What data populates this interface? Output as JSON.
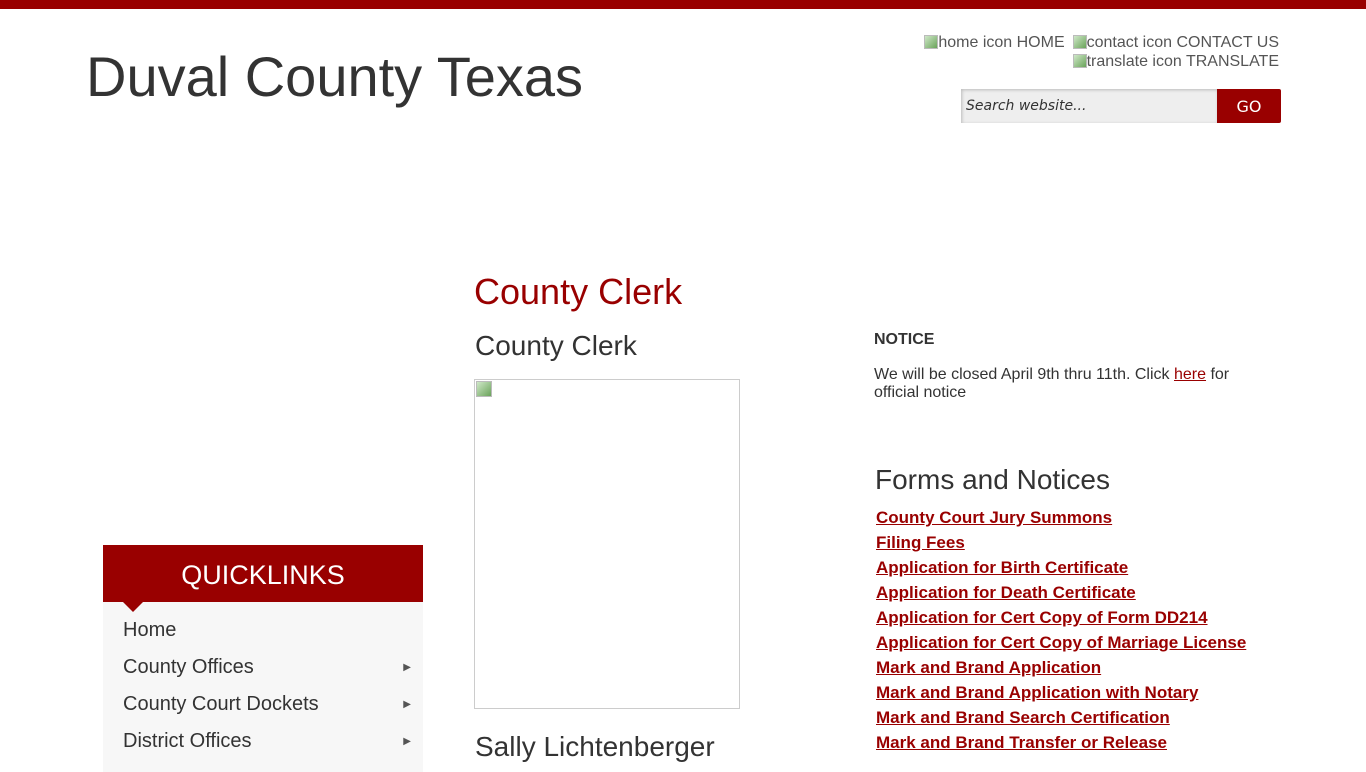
{
  "header": {
    "site_title": "Duval County Texas",
    "links": [
      {
        "alt": "home icon",
        "label": "HOME"
      },
      {
        "alt": "contact icon",
        "label": "CONTACT US"
      },
      {
        "alt": "translate icon",
        "label": "TRANSLATE"
      }
    ],
    "search_placeholder": "Search website...",
    "go_label": "GO"
  },
  "quicklinks": {
    "title": "QUICKLINKS",
    "items": [
      {
        "label": "Home",
        "has_submenu": false
      },
      {
        "label": "County Offices",
        "has_submenu": true
      },
      {
        "label": "County Court Dockets",
        "has_submenu": true
      },
      {
        "label": "District Offices",
        "has_submenu": true
      }
    ]
  },
  "main": {
    "page_title": "County Clerk",
    "subtitle": "County Clerk",
    "official_name": "Sally Lichtenberger"
  },
  "notice": {
    "heading": "NOTICE",
    "text_before": "We will be closed April 9th thru 11th. Click ",
    "link": "here",
    "text_after": " for official notice"
  },
  "forms": {
    "heading": "Forms and Notices",
    "items": [
      "County Court Jury Summons ",
      "Filing Fees",
      "Application for Birth Certificate",
      "Application for Death Certificate",
      "Application for Cert Copy of Form DD214",
      "Application for Cert Copy of Marriage License",
      "Mark and Brand Application",
      "Mark and Brand Application with Notary",
      "Mark and Brand Search Certification",
      "Mark and Brand Transfer or Release"
    ]
  },
  "colors": {
    "brand": "#990000"
  }
}
